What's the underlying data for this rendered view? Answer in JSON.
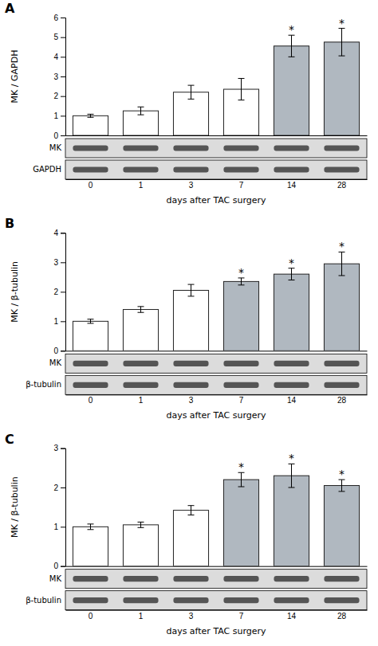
{
  "chart_data": [
    {
      "type": "bar",
      "title": "A",
      "ylabel": "MK / GAPDH",
      "xlabel": "days after TAC surgery",
      "categories": [
        "0",
        "1",
        "3",
        "7",
        "14",
        "28"
      ],
      "values": [
        1.0,
        1.25,
        2.2,
        2.35,
        4.55,
        4.75
      ],
      "errors": [
        0.08,
        0.2,
        0.35,
        0.55,
        0.55,
        0.7
      ],
      "colors": [
        "white",
        "white",
        "white",
        "white",
        "#b0b8c0",
        "#b0b8c0"
      ],
      "ylim": [
        0,
        6
      ],
      "yticks": [
        0,
        1,
        2,
        3,
        4,
        5,
        6
      ],
      "annotations": [
        {
          "text": "*",
          "category": "14"
        },
        {
          "text": "*",
          "category": "28"
        }
      ],
      "band_labels": [
        "MK",
        "GAPDH"
      ]
    },
    {
      "type": "bar",
      "title": "B",
      "ylabel": "MK / β-tubulin",
      "xlabel": "days after TAC surgery",
      "categories": [
        "0",
        "1",
        "3",
        "7",
        "14",
        "28"
      ],
      "values": [
        1.0,
        1.4,
        2.05,
        2.35,
        2.6,
        2.95
      ],
      "errors": [
        0.07,
        0.1,
        0.2,
        0.12,
        0.2,
        0.4
      ],
      "colors": [
        "white",
        "white",
        "white",
        "#b0b8c0",
        "#b0b8c0",
        "#b0b8c0"
      ],
      "ylim": [
        0,
        4
      ],
      "yticks": [
        0,
        1,
        2,
        3,
        4
      ],
      "annotations": [
        {
          "text": "*",
          "category": "7"
        },
        {
          "text": "*",
          "category": "14"
        },
        {
          "text": "*",
          "category": "28"
        }
      ],
      "band_labels": [
        "MK",
        "β-tubulin"
      ]
    },
    {
      "type": "bar",
      "title": "C",
      "ylabel": "MK / β-tubulin",
      "xlabel": "days after TAC surgery",
      "categories": [
        "0",
        "1",
        "3",
        "7",
        "14",
        "28"
      ],
      "values": [
        1.0,
        1.05,
        1.42,
        2.2,
        2.3,
        2.05
      ],
      "errors": [
        0.07,
        0.07,
        0.12,
        0.18,
        0.3,
        0.15
      ],
      "colors": [
        "white",
        "white",
        "white",
        "#b0b8c0",
        "#b0b8c0",
        "#b0b8c0"
      ],
      "ylim": [
        0,
        3
      ],
      "yticks": [
        0,
        1,
        2,
        3
      ],
      "annotations": [
        {
          "text": "*",
          "category": "7"
        },
        {
          "text": "*",
          "category": "14"
        },
        {
          "text": "*",
          "category": "28"
        }
      ],
      "band_labels": [
        "MK",
        "β-tubulin"
      ]
    }
  ]
}
